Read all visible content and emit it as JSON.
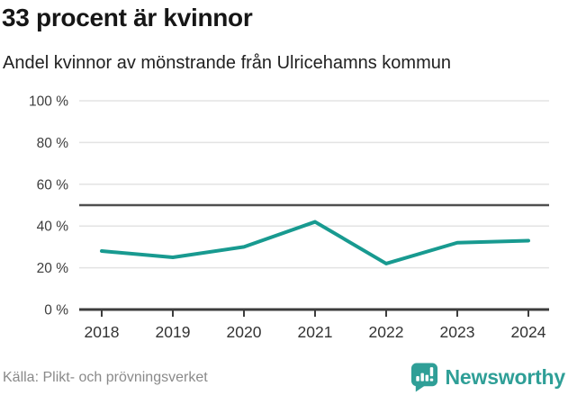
{
  "header": {
    "title": "33 procent är kvinnor",
    "subtitle": "Andel kvinnor av mönstrande från Ulricehamns kommun"
  },
  "chart_data": {
    "type": "line",
    "title": "33 procent är kvinnor",
    "subtitle": "Andel kvinnor av mönstrande från Ulricehamns kommun",
    "x": [
      "2018",
      "2019",
      "2020",
      "2021",
      "2022",
      "2023",
      "2024"
    ],
    "series": [
      {
        "name": "Andel kvinnor av mönstrande",
        "values": [
          28,
          25,
          30,
          42,
          22,
          32,
          33
        ]
      }
    ],
    "reference_line": {
      "value": 50
    },
    "ylim": [
      0,
      100
    ],
    "yticks": [
      0,
      20,
      40,
      60,
      80,
      100
    ],
    "ytick_suffix": " %",
    "xlabel": "",
    "ylabel": "",
    "grid": true,
    "legend": "none",
    "colors": {
      "line": "#189a90",
      "grid": "#e3e3e3",
      "axis": "#3d3d3d",
      "reference": "#4f4f4f"
    }
  },
  "footer": {
    "source": "Källa: Plikt- och prövningsverket",
    "logo_text": "Newsworthy",
    "logo_color": "#2f9f97"
  }
}
